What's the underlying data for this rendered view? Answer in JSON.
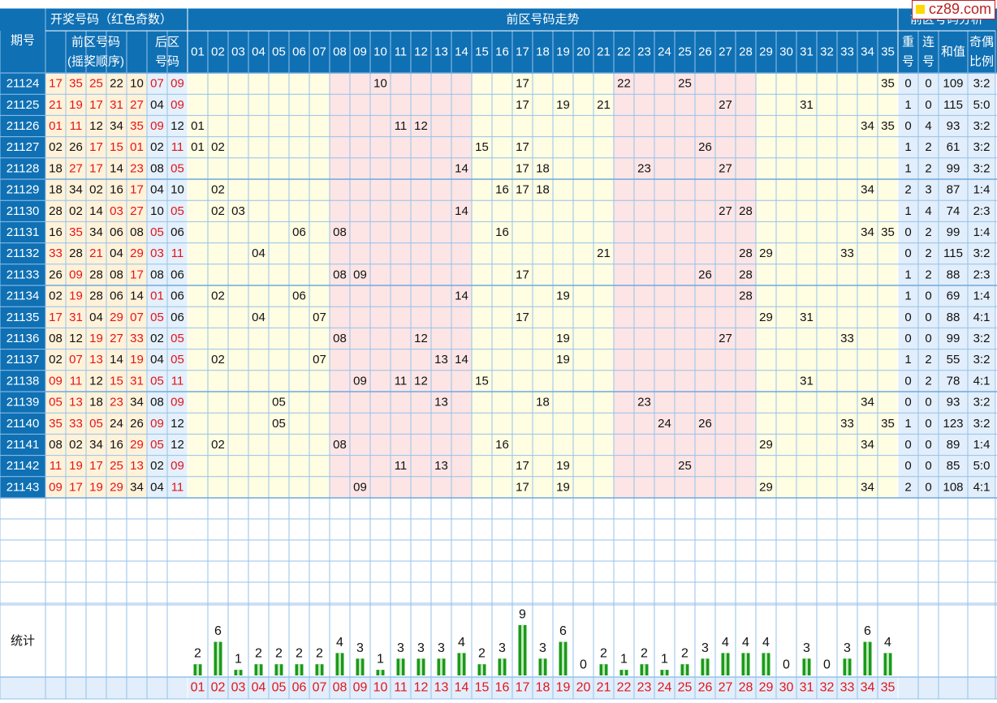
{
  "header": {
    "issue_col": "期号",
    "draw_group": "开奖号码（红色奇数）",
    "front_title_1": "前区号码",
    "front_title_2": "(摇奖顺序)",
    "back_title_1": "后区",
    "back_title_2": "号码",
    "trend_title": "前区号码走势",
    "analysis_title": "前区号码分析",
    "repeat_1": "重",
    "repeat_2": "号",
    "consec_1": "连",
    "consec_2": "号",
    "sum_label": "和值",
    "ratio_1": "奇偶",
    "ratio_2": "比例",
    "stats_label": "统计"
  },
  "logo": {
    "text": "cz89.com",
    "square_color": "#ffd800"
  },
  "colors": {
    "header_bg": "#0f70b4",
    "front_draw_bg": "#fff2d9",
    "back_draw_bg": "#e4f0fb",
    "zone_yellow": "#fffde2",
    "zone_pink": "#fde5e5",
    "analysis_bg": "#e2eefb",
    "odd_red": "#e3141b",
    "grid_line": "#94c2ea",
    "bar_green": "#1a9a1a"
  },
  "draws": [
    {
      "issue": "21124",
      "front": [
        "17",
        "35",
        "25",
        "22",
        "10"
      ],
      "back": [
        "07",
        "09"
      ],
      "repeat": "0",
      "consec": "0",
      "sum": "109",
      "ratio": "3:2"
    },
    {
      "issue": "21125",
      "front": [
        "21",
        "19",
        "17",
        "31",
        "27"
      ],
      "back": [
        "04",
        "09"
      ],
      "repeat": "1",
      "consec": "0",
      "sum": "115",
      "ratio": "5:0"
    },
    {
      "issue": "21126",
      "front": [
        "01",
        "11",
        "12",
        "34",
        "35"
      ],
      "back": [
        "09",
        "12"
      ],
      "repeat": "0",
      "consec": "4",
      "sum": "93",
      "ratio": "3:2"
    },
    {
      "issue": "21127",
      "front": [
        "02",
        "26",
        "17",
        "15",
        "01"
      ],
      "back": [
        "02",
        "11"
      ],
      "repeat": "1",
      "consec": "2",
      "sum": "61",
      "ratio": "3:2"
    },
    {
      "issue": "21128",
      "front": [
        "18",
        "27",
        "17",
        "14",
        "23"
      ],
      "back": [
        "08",
        "05"
      ],
      "repeat": "1",
      "consec": "2",
      "sum": "99",
      "ratio": "3:2"
    },
    {
      "issue": "21129",
      "front": [
        "18",
        "34",
        "02",
        "16",
        "17"
      ],
      "back": [
        "04",
        "10"
      ],
      "repeat": "2",
      "consec": "3",
      "sum": "87",
      "ratio": "1:4"
    },
    {
      "issue": "21130",
      "front": [
        "28",
        "02",
        "14",
        "03",
        "27"
      ],
      "back": [
        "10",
        "05"
      ],
      "repeat": "1",
      "consec": "4",
      "sum": "74",
      "ratio": "2:3"
    },
    {
      "issue": "21131",
      "front": [
        "16",
        "35",
        "34",
        "06",
        "08"
      ],
      "back": [
        "05",
        "06"
      ],
      "repeat": "0",
      "consec": "2",
      "sum": "99",
      "ratio": "1:4"
    },
    {
      "issue": "21132",
      "front": [
        "33",
        "28",
        "21",
        "04",
        "29"
      ],
      "back": [
        "03",
        "11"
      ],
      "repeat": "0",
      "consec": "2",
      "sum": "115",
      "ratio": "3:2"
    },
    {
      "issue": "21133",
      "front": [
        "26",
        "09",
        "28",
        "08",
        "17"
      ],
      "back": [
        "08",
        "06"
      ],
      "repeat": "1",
      "consec": "2",
      "sum": "88",
      "ratio": "2:3"
    },
    {
      "issue": "21134",
      "front": [
        "02",
        "19",
        "28",
        "06",
        "14"
      ],
      "back": [
        "01",
        "06"
      ],
      "repeat": "1",
      "consec": "0",
      "sum": "69",
      "ratio": "1:4"
    },
    {
      "issue": "21135",
      "front": [
        "17",
        "31",
        "04",
        "29",
        "07"
      ],
      "back": [
        "05",
        "06"
      ],
      "repeat": "0",
      "consec": "0",
      "sum": "88",
      "ratio": "4:1"
    },
    {
      "issue": "21136",
      "front": [
        "08",
        "12",
        "19",
        "27",
        "33"
      ],
      "back": [
        "02",
        "05"
      ],
      "repeat": "0",
      "consec": "0",
      "sum": "99",
      "ratio": "3:2"
    },
    {
      "issue": "21137",
      "front": [
        "02",
        "07",
        "13",
        "14",
        "19"
      ],
      "back": [
        "04",
        "05"
      ],
      "repeat": "1",
      "consec": "2",
      "sum": "55",
      "ratio": "3:2"
    },
    {
      "issue": "21138",
      "front": [
        "09",
        "11",
        "12",
        "15",
        "31"
      ],
      "back": [
        "05",
        "11"
      ],
      "repeat": "0",
      "consec": "2",
      "sum": "78",
      "ratio": "4:1"
    },
    {
      "issue": "21139",
      "front": [
        "05",
        "13",
        "18",
        "23",
        "34"
      ],
      "back": [
        "08",
        "09"
      ],
      "repeat": "0",
      "consec": "0",
      "sum": "93",
      "ratio": "3:2"
    },
    {
      "issue": "21140",
      "front": [
        "35",
        "33",
        "05",
        "24",
        "26"
      ],
      "back": [
        "09",
        "12"
      ],
      "repeat": "1",
      "consec": "0",
      "sum": "123",
      "ratio": "3:2"
    },
    {
      "issue": "21141",
      "front": [
        "08",
        "02",
        "34",
        "16",
        "29"
      ],
      "back": [
        "05",
        "12"
      ],
      "repeat": "0",
      "consec": "0",
      "sum": "89",
      "ratio": "1:4"
    },
    {
      "issue": "21142",
      "front": [
        "11",
        "19",
        "17",
        "25",
        "13"
      ],
      "back": [
        "02",
        "09"
      ],
      "repeat": "0",
      "consec": "0",
      "sum": "85",
      "ratio": "5:0"
    },
    {
      "issue": "21143",
      "front": [
        "09",
        "17",
        "19",
        "29",
        "34"
      ],
      "back": [
        "04",
        "11"
      ],
      "repeat": "2",
      "consec": "0",
      "sum": "108",
      "ratio": "4:1"
    }
  ],
  "chart_data": {
    "type": "bar",
    "categories": [
      "01",
      "02",
      "03",
      "04",
      "05",
      "06",
      "07",
      "08",
      "09",
      "10",
      "11",
      "12",
      "13",
      "14",
      "15",
      "16",
      "17",
      "18",
      "19",
      "20",
      "21",
      "22",
      "23",
      "24",
      "25",
      "26",
      "27",
      "28",
      "29",
      "30",
      "31",
      "32",
      "33",
      "34",
      "35"
    ],
    "values": [
      2,
      6,
      1,
      2,
      2,
      2,
      2,
      4,
      3,
      1,
      3,
      3,
      3,
      4,
      2,
      3,
      9,
      3,
      6,
      0,
      2,
      1,
      2,
      1,
      2,
      3,
      4,
      4,
      4,
      0,
      3,
      0,
      3,
      6,
      4
    ],
    "title": "统计",
    "xlabel": "",
    "ylabel": "",
    "grid": true
  }
}
